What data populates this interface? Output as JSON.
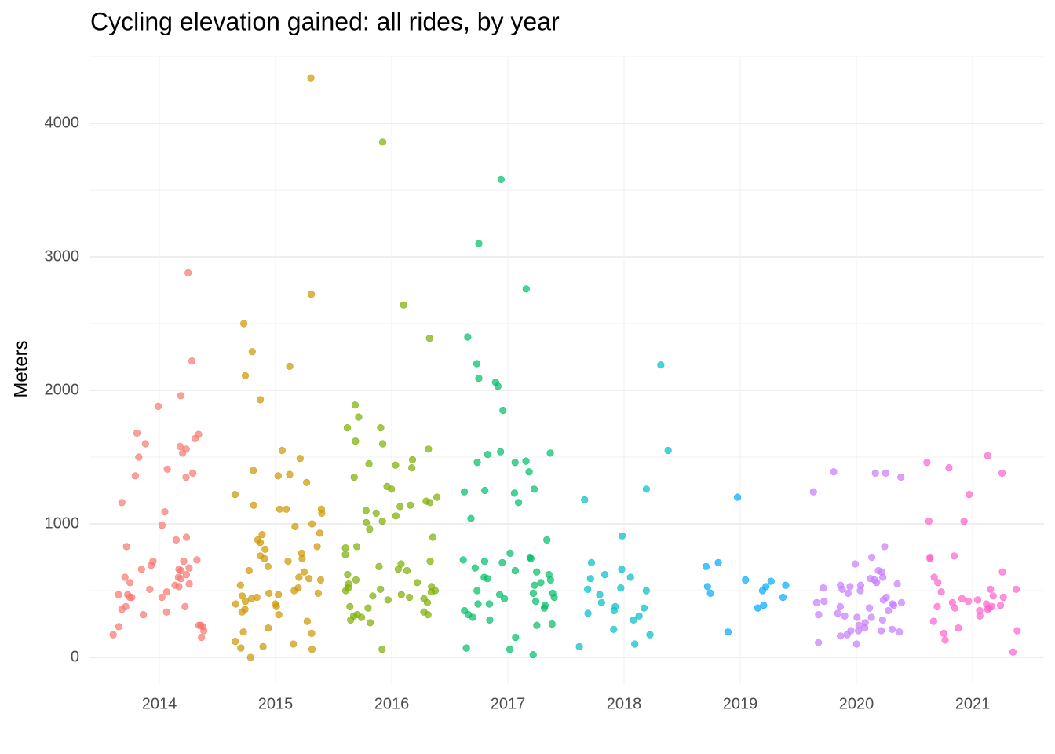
{
  "chart_data": {
    "type": "strip",
    "title": "Cycling elevation gained: all rides, by year",
    "y_label": "Meters",
    "categories": [
      "2014",
      "2015",
      "2016",
      "2017",
      "2018",
      "2019",
      "2020",
      "2021"
    ],
    "colors": [
      "#F8766D",
      "#CD9600",
      "#7CAE00",
      "#00BE67",
      "#00BFC4",
      "#00A9FF",
      "#C77CFF",
      "#FF61CC"
    ],
    "values": [
      [
        2880,
        2220,
        1960,
        1880,
        1680,
        1670,
        1640,
        1600,
        1580,
        1560,
        1530,
        1500,
        1410,
        1380,
        1360,
        1350,
        1160,
        1090,
        990,
        900,
        880,
        830,
        730,
        720,
        720,
        690,
        670,
        660,
        660,
        650,
        620,
        600,
        600,
        590,
        560,
        550,
        540,
        530,
        510,
        490,
        470,
        470,
        450,
        450,
        450,
        380,
        380,
        360,
        340,
        320,
        240,
        240,
        230,
        230,
        200,
        170,
        150
      ],
      [
        4340,
        2720,
        2500,
        2290,
        2180,
        2110,
        1930,
        1550,
        1490,
        1400,
        1370,
        1360,
        1310,
        1220,
        1140,
        1110,
        1110,
        1110,
        1080,
        1000,
        980,
        930,
        920,
        880,
        860,
        830,
        810,
        780,
        760,
        740,
        740,
        720,
        680,
        650,
        640,
        600,
        590,
        580,
        540,
        520,
        500,
        480,
        480,
        470,
        460,
        450,
        440,
        420,
        400,
        400,
        380,
        360,
        340,
        320,
        270,
        220,
        190,
        180,
        120,
        100,
        80,
        70,
        60,
        0
      ],
      [
        3860,
        2640,
        2390,
        1890,
        1800,
        1720,
        1720,
        1620,
        1600,
        1560,
        1480,
        1450,
        1440,
        1420,
        1350,
        1280,
        1260,
        1200,
        1170,
        1160,
        1140,
        1130,
        1100,
        1080,
        1060,
        1020,
        1010,
        960,
        900,
        830,
        820,
        770,
        720,
        700,
        680,
        660,
        650,
        620,
        580,
        560,
        550,
        530,
        520,
        510,
        500,
        500,
        490,
        470,
        460,
        450,
        440,
        430,
        410,
        380,
        370,
        340,
        320,
        320,
        310,
        300,
        280,
        260,
        60
      ],
      [
        3580,
        3100,
        2760,
        2400,
        2200,
        2090,
        2060,
        2030,
        1850,
        1540,
        1530,
        1520,
        1470,
        1460,
        1460,
        1390,
        1260,
        1250,
        1240,
        1230,
        1160,
        1040,
        880,
        780,
        750,
        740,
        730,
        720,
        710,
        670,
        650,
        640,
        620,
        600,
        590,
        580,
        560,
        540,
        500,
        480,
        480,
        470,
        450,
        440,
        420,
        400,
        400,
        390,
        370,
        350,
        320,
        300,
        280,
        250,
        240,
        150,
        70,
        60,
        20
      ],
      [
        2190,
        1550,
        1260,
        1180,
        910,
        710,
        660,
        620,
        600,
        590,
        520,
        510,
        500,
        470,
        410,
        380,
        370,
        350,
        330,
        310,
        280,
        210,
        170,
        100,
        80
      ],
      [
        1200,
        710,
        680,
        580,
        570,
        540,
        530,
        530,
        500,
        480,
        450,
        390,
        370,
        190
      ],
      [
        1390,
        1380,
        1380,
        1350,
        1240,
        830,
        750,
        700,
        650,
        640,
        600,
        590,
        580,
        560,
        550,
        540,
        540,
        530,
        520,
        510,
        500,
        480,
        450,
        430,
        420,
        410,
        410,
        400,
        390,
        380,
        370,
        350,
        330,
        320,
        310,
        300,
        300,
        280,
        260,
        240,
        220,
        210,
        200,
        200,
        200,
        190,
        170,
        160,
        110,
        100
      ],
      [
        1510,
        1460,
        1420,
        1380,
        1220,
        1020,
        1020,
        760,
        750,
        740,
        640,
        600,
        560,
        510,
        510,
        490,
        460,
        450,
        440,
        430,
        420,
        410,
        400,
        390,
        380,
        380,
        370,
        370,
        360,
        350,
        310,
        270,
        220,
        200,
        180,
        130,
        40
      ]
    ],
    "ylim": [
      -200,
      4500
    ],
    "yticks": [
      0,
      1000,
      2000,
      3000,
      4000
    ],
    "minor_yticks": [
      500,
      1500,
      2500,
      3500,
      4500
    ],
    "grid": true
  }
}
